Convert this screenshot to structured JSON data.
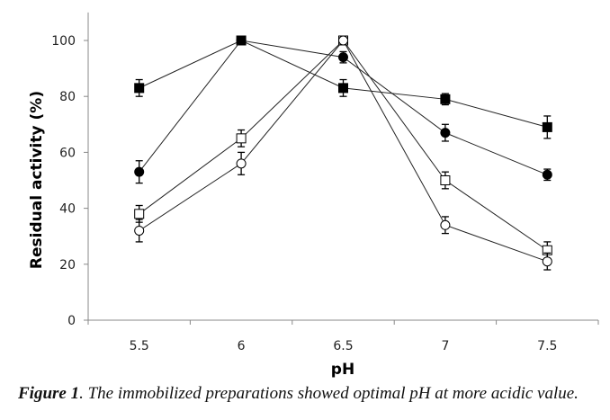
{
  "chart_data": {
    "type": "line",
    "title": "",
    "xlabel": "pH",
    "ylabel": "Residual activity (%)",
    "categories": [
      "5.5",
      "6",
      "6.5",
      "7",
      "7.5"
    ],
    "ylim": [
      0,
      110
    ],
    "yticks": [
      0,
      20,
      40,
      60,
      80,
      100
    ],
    "grid": false,
    "legend": "none",
    "series": [
      {
        "name": "filled-square",
        "marker": "square",
        "filled": true,
        "values": [
          83,
          100,
          83,
          79,
          69
        ],
        "errors": [
          3,
          0,
          3,
          2,
          4
        ]
      },
      {
        "name": "filled-circle",
        "marker": "circle",
        "filled": true,
        "values": [
          53,
          100,
          94,
          67,
          52
        ],
        "errors": [
          4,
          0,
          2,
          3,
          2
        ]
      },
      {
        "name": "open-square",
        "marker": "square",
        "filled": false,
        "values": [
          38,
          65,
          100,
          50,
          25
        ],
        "errors": [
          3,
          3,
          0,
          3,
          3
        ]
      },
      {
        "name": "open-circle",
        "marker": "circle",
        "filled": false,
        "values": [
          32,
          56,
          100,
          34,
          21
        ],
        "errors": [
          4,
          4,
          0,
          3,
          3
        ]
      }
    ]
  },
  "caption": {
    "label": "Figure 1",
    "text": ". The immobilized preparations showed optimal pH at more acidic value."
  }
}
